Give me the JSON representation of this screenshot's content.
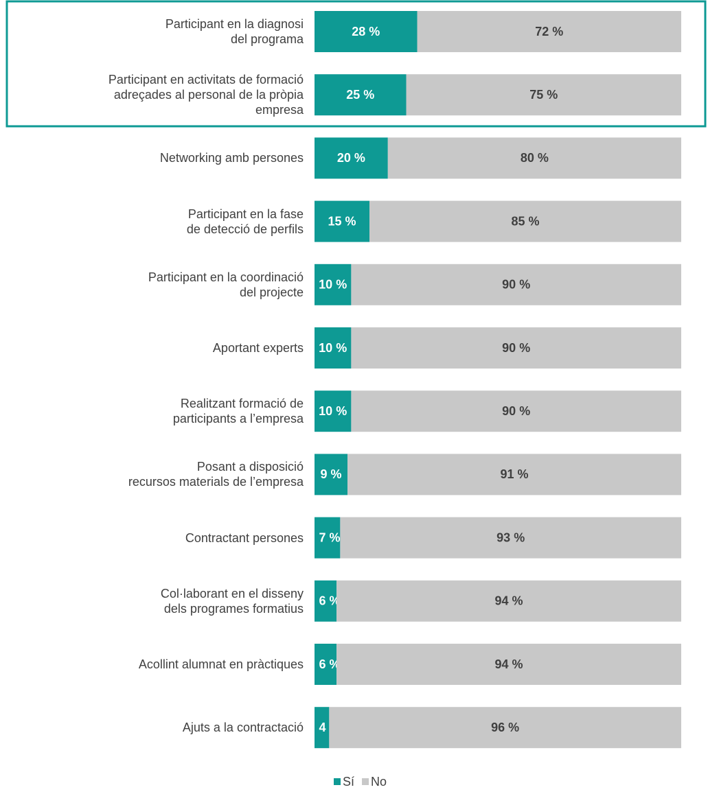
{
  "chart_data": {
    "type": "stacked-bar-horizontal",
    "categories": [
      "Participant en la diagnosi\ndel programa",
      "Participant en activitats de formació\nadreçades al personal de la pròpia\nempresa",
      "Networking amb persones",
      "Participant en la fase\nde detecció de perfils",
      "Participant en la coordinació\ndel projecte",
      "Aportant experts",
      "Realitzant formació de\nparticipants a l’empresa",
      "Posant a disposició\nrecursos materials de l’empresa",
      "Contractant persones",
      "Col·laborant en el disseny\ndels programes formatius",
      "Acollint alumnat en pràctiques",
      "Ajuts a la contractació"
    ],
    "xlim": [
      0,
      100
    ],
    "series": [
      {
        "name": "Sí",
        "color": "#0e9a94",
        "label_color": "#ffffff",
        "values": [
          28,
          25,
          20,
          15,
          10,
          10,
          10,
          9,
          7,
          6,
          6,
          4
        ],
        "value_labels": [
          "28 %",
          "25 %",
          "20 %",
          "15 %",
          "10 %",
          "10 %",
          "10 %",
          "9 %",
          "7 %",
          "6 %",
          "6 %",
          "4 %"
        ]
      },
      {
        "name": "No",
        "color": "#c8c8c8",
        "label_color": "#404040",
        "values": [
          72,
          75,
          80,
          85,
          90,
          90,
          90,
          91,
          93,
          94,
          94,
          96
        ],
        "value_labels": [
          "72 %",
          "75 %",
          "80 %",
          "85 %",
          "90 %",
          "90 %",
          "90 %",
          "91 %",
          "93 %",
          "94 %",
          "94 %",
          "96 %"
        ]
      }
    ]
  }
}
